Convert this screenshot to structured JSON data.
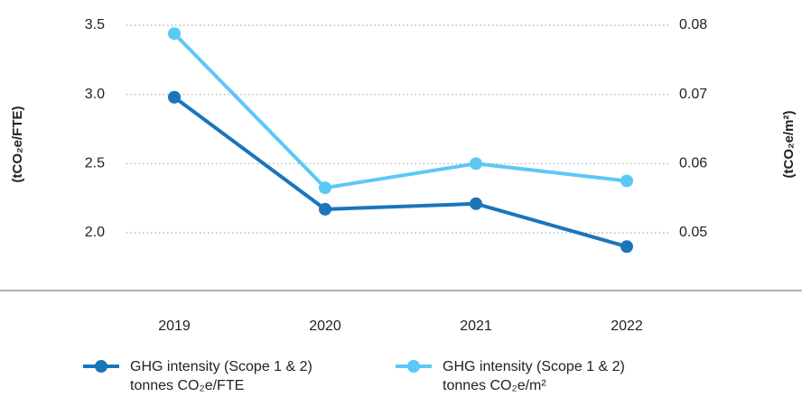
{
  "chart_data": {
    "type": "line",
    "y_label": "(tCO₂e/FTE)",
    "y2_label": "(tCO₂e/m²)",
    "categories": [
      "2019",
      "2020",
      "2021",
      "2022"
    ],
    "series": [
      {
        "name": "GHG intensity (Scope 1 & 2)",
        "unit_label": "tonnes CO₂e/FTE",
        "color": "#1b75bb",
        "values": [
          2.98,
          2.17,
          2.21,
          1.9
        ]
      },
      {
        "name": "GHG intensity (Scope 1 & 2)",
        "unit_label": "tonnes CO₂e/m²",
        "color": "#5bc8f5",
        "axis": "y2",
        "values": [
          0.0788,
          0.0565,
          0.06,
          0.0575
        ]
      }
    ],
    "ylim": [
      1.75,
      3.6
    ],
    "yticks": [
      {
        "value": 2,
        "label": "2.0"
      },
      2.5,
      {
        "value": 3,
        "label": "3.0"
      },
      3.5
    ],
    "y2lim": [
      0.045,
      0.082
    ],
    "y2ticks": [
      0.05,
      0.06,
      0.07,
      0.08
    ],
    "grid": true
  }
}
